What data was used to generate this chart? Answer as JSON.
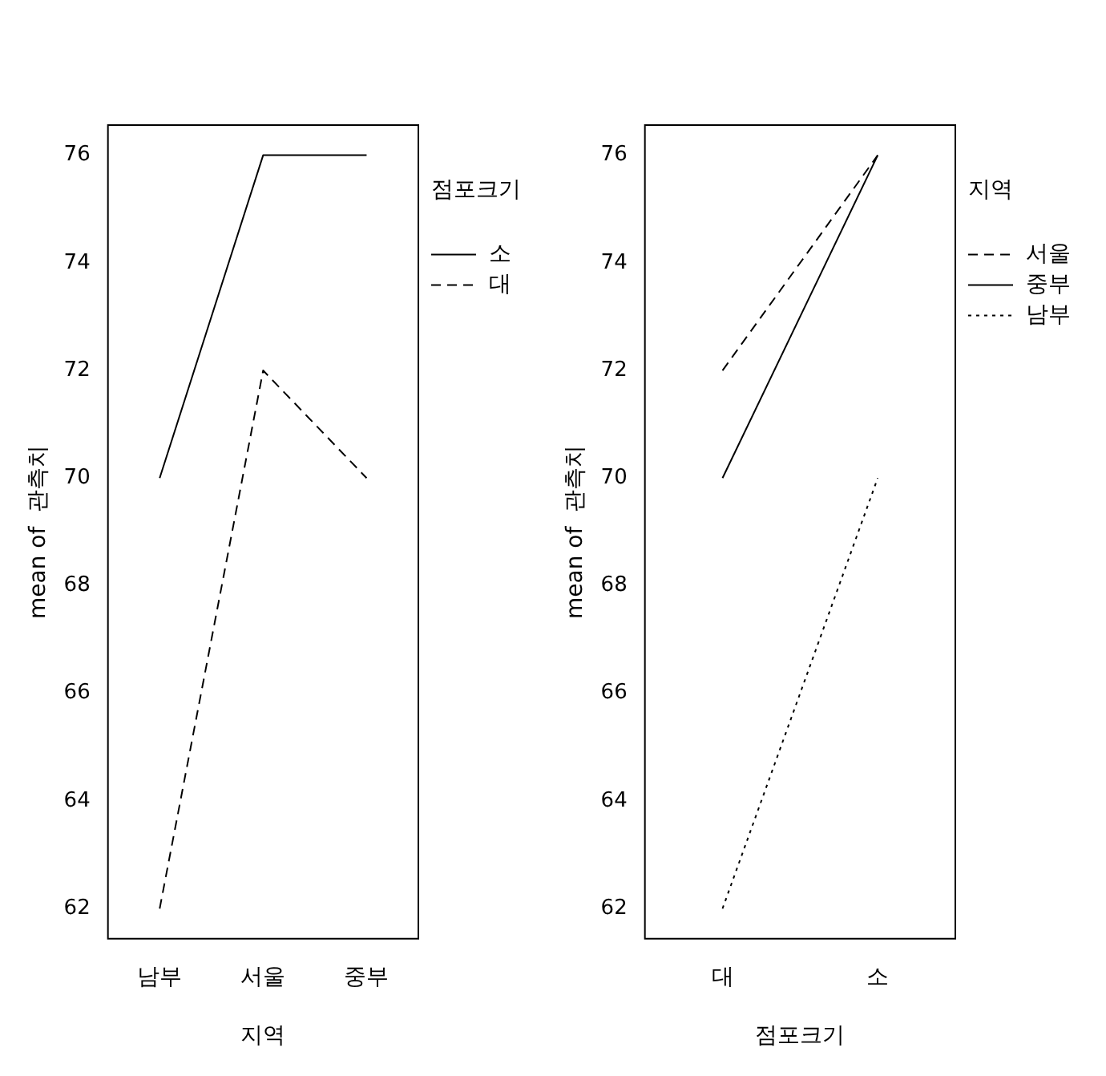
{
  "chart_data": [
    {
      "type": "line",
      "xlabel": "지역",
      "ylabel": "mean of  관측치",
      "legend_title": "점포크기",
      "categories": [
        "남부",
        "서울",
        "중부"
      ],
      "ylim": [
        61.44,
        76.56
      ],
      "yticks": [
        62,
        64,
        66,
        68,
        70,
        72,
        74,
        76
      ],
      "grid": false,
      "legend": "top right",
      "marker": "none",
      "series": [
        {
          "name": "소",
          "color": "#000000",
          "line_style": "solid",
          "values": [
            70,
            76,
            76
          ]
        },
        {
          "name": "대",
          "color": "#000000",
          "line_style": "dashed",
          "values": [
            62,
            72,
            70
          ]
        }
      ]
    },
    {
      "type": "line",
      "xlabel": "점포크기",
      "ylabel": "mean of  관측치",
      "legend_title": "지역",
      "categories": [
        "대",
        "소"
      ],
      "ylim": [
        61.44,
        76.56
      ],
      "yticks": [
        62,
        64,
        66,
        68,
        70,
        72,
        74,
        76
      ],
      "grid": false,
      "legend": "top right",
      "marker": "none",
      "series": [
        {
          "name": "서울",
          "color": "#000000",
          "line_style": "dashed",
          "values": [
            72,
            76
          ]
        },
        {
          "name": "중부",
          "color": "#000000",
          "line_style": "solid",
          "values": [
            70,
            76
          ]
        },
        {
          "name": "남부",
          "color": "#000000",
          "line_style": "dotted",
          "values": [
            62,
            70
          ]
        }
      ]
    }
  ]
}
